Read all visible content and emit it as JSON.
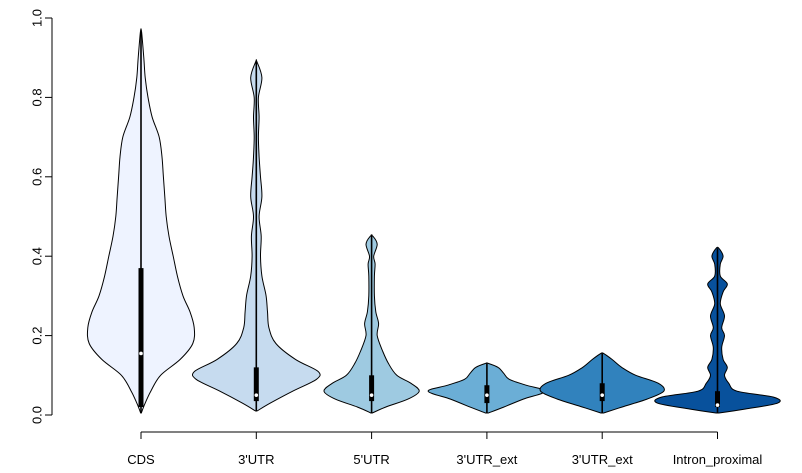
{
  "chart_data": {
    "type": "violin",
    "title": "",
    "xlabel": "",
    "ylabel": "",
    "ylim": [
      0,
      1
    ],
    "y_ticks": [
      0.0,
      0.2,
      0.4,
      0.6,
      0.8,
      1.0
    ],
    "y_tick_labels": [
      "0.0",
      "0.2",
      "0.4",
      "0.6",
      "0.8",
      "1.0"
    ],
    "categories": [
      "CDS",
      "3'UTR",
      "5'UTR",
      "3'UTR_ext",
      "3'UTR_ext",
      "Intron_proximal"
    ],
    "colors": [
      "#eef3ff",
      "#c6dbef",
      "#9ecae1",
      "#6baed6",
      "#3182bd",
      "#08519c"
    ],
    "violins": [
      {
        "min": 0.005,
        "q1": 0.02,
        "median": 0.155,
        "q3": 0.37,
        "max": 0.965,
        "profile": [
          [
            0.005,
            0.2
          ],
          [
            0.03,
            3
          ],
          [
            0.06,
            7
          ],
          [
            0.1,
            14
          ],
          [
            0.14,
            28
          ],
          [
            0.18,
            37
          ],
          [
            0.22,
            38
          ],
          [
            0.26,
            35
          ],
          [
            0.3,
            30
          ],
          [
            0.35,
            26
          ],
          [
            0.4,
            23
          ],
          [
            0.45,
            20
          ],
          [
            0.5,
            18
          ],
          [
            0.55,
            17
          ],
          [
            0.6,
            16
          ],
          [
            0.65,
            15
          ],
          [
            0.7,
            13
          ],
          [
            0.75,
            8
          ],
          [
            0.8,
            5
          ],
          [
            0.85,
            3
          ],
          [
            0.9,
            2
          ],
          [
            0.965,
            0.4
          ]
        ]
      },
      {
        "min": 0.01,
        "q1": 0.035,
        "median": 0.05,
        "q3": 0.12,
        "max": 0.89,
        "profile": [
          [
            0.01,
            0.5
          ],
          [
            0.03,
            10
          ],
          [
            0.06,
            26
          ],
          [
            0.09,
            43
          ],
          [
            0.11,
            44
          ],
          [
            0.14,
            28
          ],
          [
            0.18,
            14
          ],
          [
            0.22,
            9
          ],
          [
            0.26,
            8
          ],
          [
            0.3,
            7
          ],
          [
            0.35,
            4
          ],
          [
            0.4,
            3
          ],
          [
            0.45,
            3.5
          ],
          [
            0.5,
            2
          ],
          [
            0.55,
            4
          ],
          [
            0.6,
            3
          ],
          [
            0.65,
            2
          ],
          [
            0.7,
            1.5
          ],
          [
            0.75,
            2
          ],
          [
            0.8,
            1.5
          ],
          [
            0.85,
            4
          ],
          [
            0.89,
            0.4
          ]
        ]
      },
      {
        "min": 0.005,
        "q1": 0.035,
        "median": 0.05,
        "q3": 0.1,
        "max": 0.455,
        "profile": [
          [
            0.005,
            0.5
          ],
          [
            0.02,
            10
          ],
          [
            0.04,
            26
          ],
          [
            0.06,
            34
          ],
          [
            0.08,
            28
          ],
          [
            0.1,
            18
          ],
          [
            0.13,
            12
          ],
          [
            0.16,
            8
          ],
          [
            0.2,
            4
          ],
          [
            0.23,
            5
          ],
          [
            0.26,
            3
          ],
          [
            0.3,
            2
          ],
          [
            0.35,
            2
          ],
          [
            0.38,
            2.5
          ],
          [
            0.4,
            1.5
          ],
          [
            0.43,
            4
          ],
          [
            0.45,
            1
          ]
        ]
      },
      {
        "min": 0.005,
        "q1": 0.03,
        "median": 0.05,
        "q3": 0.075,
        "max": 0.13,
        "profile": [
          [
            0.005,
            1
          ],
          [
            0.02,
            12
          ],
          [
            0.04,
            26
          ],
          [
            0.06,
            42
          ],
          [
            0.075,
            28
          ],
          [
            0.09,
            16
          ],
          [
            0.105,
            12
          ],
          [
            0.12,
            8
          ],
          [
            0.13,
            1
          ]
        ]
      },
      {
        "min": 0.005,
        "q1": 0.035,
        "median": 0.05,
        "q3": 0.08,
        "max": 0.155,
        "profile": [
          [
            0.005,
            1
          ],
          [
            0.02,
            14
          ],
          [
            0.04,
            32
          ],
          [
            0.06,
            44
          ],
          [
            0.08,
            40
          ],
          [
            0.1,
            24
          ],
          [
            0.12,
            14
          ],
          [
            0.14,
            7
          ],
          [
            0.155,
            1
          ]
        ]
      },
      {
        "min": 0.005,
        "q1": 0.02,
        "median": 0.025,
        "q3": 0.06,
        "max": 0.42,
        "profile": [
          [
            0.005,
            1
          ],
          [
            0.015,
            20
          ],
          [
            0.03,
            43
          ],
          [
            0.045,
            40
          ],
          [
            0.06,
            14
          ],
          [
            0.08,
            8
          ],
          [
            0.1,
            5
          ],
          [
            0.12,
            7
          ],
          [
            0.14,
            4
          ],
          [
            0.17,
            3
          ],
          [
            0.2,
            5
          ],
          [
            0.22,
            3
          ],
          [
            0.25,
            5
          ],
          [
            0.28,
            2
          ],
          [
            0.31,
            4
          ],
          [
            0.33,
            7
          ],
          [
            0.35,
            2
          ],
          [
            0.38,
            2
          ],
          [
            0.4,
            4
          ],
          [
            0.42,
            1
          ]
        ]
      }
    ],
    "grid": false,
    "legend": "none"
  }
}
